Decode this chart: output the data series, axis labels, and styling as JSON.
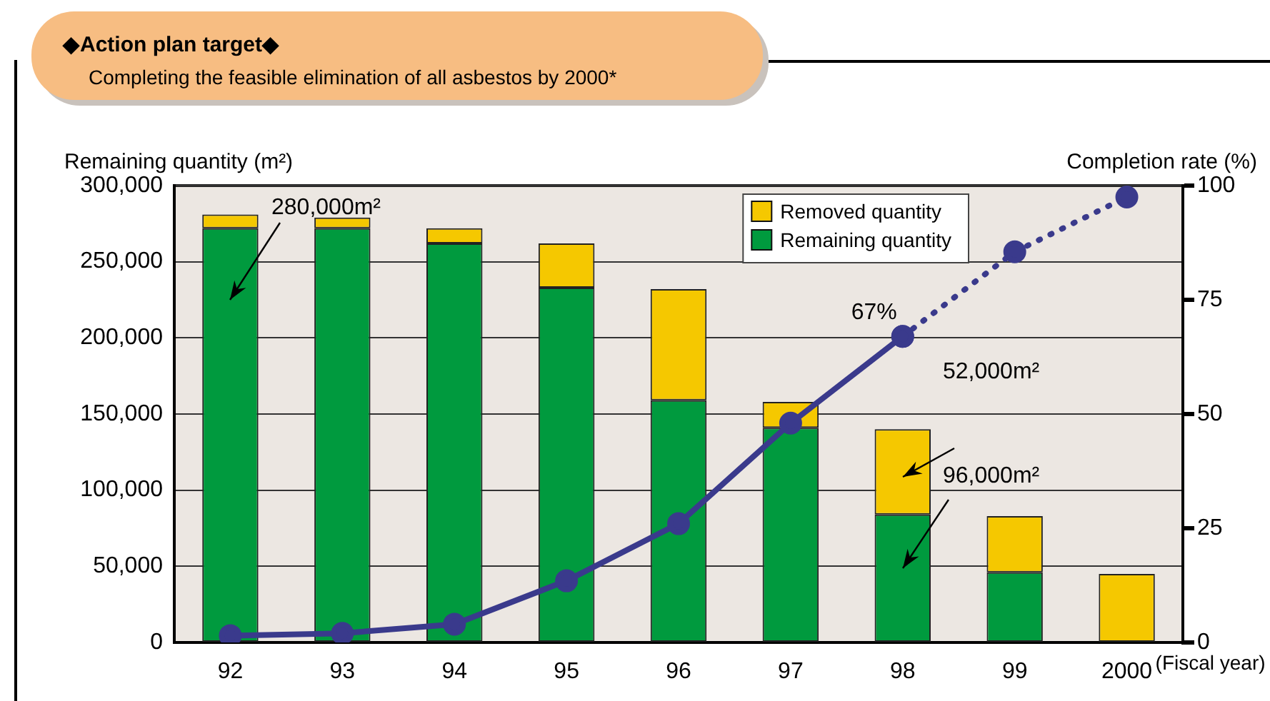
{
  "chart_data": {
    "type": "bar",
    "title": "◆Action plan target◆",
    "subtitle": "Completing the feasible elimination of all asbestos by 2000*",
    "xlabel": "(Fiscal year)",
    "ylabel": "Remaining quantity (m²)",
    "y2label": "Completion rate (%)",
    "categories": [
      "92",
      "93",
      "94",
      "95",
      "96",
      "97",
      "98",
      "99",
      "2000"
    ],
    "stacked": true,
    "series": [
      {
        "name": "Remaining quantity",
        "color": "#009a3e",
        "values": [
          272000,
          272000,
          262000,
          233000,
          159000,
          141000,
          84000,
          46000,
          0
        ]
      },
      {
        "name": "Removed quantity",
        "color": "#f5c800",
        "values": [
          9000,
          7000,
          10000,
          29000,
          73000,
          17000,
          56000,
          37000,
          45000
        ]
      },
      {
        "type": "line",
        "axis": "y2",
        "color": "#3a3a8c",
        "line_style": "solid",
        "values": [
          1.5,
          2,
          4,
          13.5,
          26,
          48,
          67,
          null,
          null
        ]
      },
      {
        "type": "line",
        "axis": "y2",
        "color": "#3a3a8c",
        "line_style": "dotted",
        "values": [
          null,
          null,
          null,
          null,
          null,
          null,
          67,
          85.5,
          97.5
        ]
      }
    ],
    "marker": "circle",
    "ylim": [
      0,
      300000
    ],
    "yticks": [
      0,
      {
        "value": 50000,
        "label": "50,000"
      },
      {
        "value": 100000,
        "label": "100,000"
      },
      {
        "value": 150000,
        "label": "150,000"
      },
      {
        "value": 200000,
        "label": "200,000"
      },
      {
        "value": 250000,
        "label": "250,000"
      },
      {
        "value": 300000,
        "label": "300,000"
      }
    ],
    "y2lim": [
      0,
      100
    ],
    "y2ticks": [
      0,
      25,
      50,
      75,
      100
    ],
    "grid": "y",
    "legend": "top right",
    "annotations": [
      "280,000m²",
      "67%",
      "52,000m²",
      "96,000m²"
    ]
  }
}
